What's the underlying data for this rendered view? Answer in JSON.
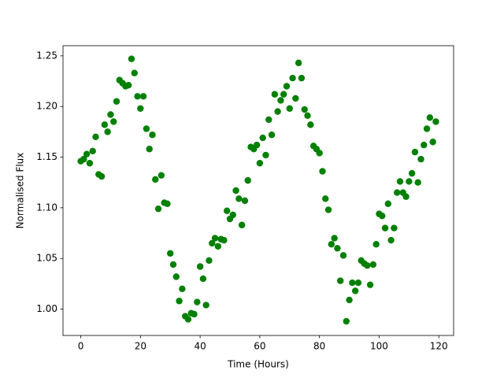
{
  "chart_data": {
    "type": "scatter",
    "xlabel": "Time (Hours)",
    "ylabel": "Normalised Flux",
    "color": "#008000",
    "x": [
      0,
      1,
      2,
      3,
      4,
      5,
      6,
      7,
      8,
      9,
      10,
      11,
      12,
      13,
      14,
      15,
      16,
      17,
      18,
      19,
      20,
      21,
      22,
      23,
      24,
      25,
      26,
      27,
      28,
      29,
      30,
      31,
      32,
      33,
      34,
      35,
      36,
      37,
      38,
      39,
      40,
      41,
      42,
      43,
      44,
      45,
      46,
      47,
      48,
      49,
      50,
      51,
      52,
      53,
      54,
      55,
      56,
      57,
      58,
      59,
      60,
      61,
      62,
      63,
      64,
      65,
      66,
      67,
      68,
      69,
      70,
      71,
      72,
      73,
      74,
      75,
      76,
      77,
      78,
      79,
      80,
      81,
      82,
      83,
      84,
      85,
      86,
      87,
      88,
      89,
      90,
      91,
      92,
      93,
      94,
      95,
      96,
      97,
      98,
      99,
      100,
      101,
      102,
      103,
      104,
      105,
      106,
      107,
      108,
      109,
      110,
      111,
      112,
      113,
      114,
      115,
      116,
      117,
      118,
      119
    ],
    "y": [
      1.146,
      1.148,
      1.153,
      1.144,
      1.156,
      1.17,
      1.133,
      1.131,
      1.182,
      1.175,
      1.192,
      1.185,
      1.205,
      1.226,
      1.223,
      1.22,
      1.221,
      1.247,
      1.233,
      1.21,
      1.198,
      1.21,
      1.178,
      1.158,
      1.172,
      1.128,
      1.099,
      1.132,
      1.105,
      1.104,
      1.055,
      1.044,
      1.032,
      1.008,
      1.02,
      0.993,
      0.99,
      0.996,
      0.995,
      1.007,
      1.042,
      1.03,
      1.004,
      1.048,
      1.065,
      1.07,
      1.062,
      1.069,
      1.068,
      1.097,
      1.089,
      1.093,
      1.117,
      1.109,
      1.083,
      1.107,
      1.127,
      1.16,
      1.158,
      1.162,
      1.144,
      1.169,
      1.152,
      1.187,
      1.172,
      1.212,
      1.195,
      1.206,
      1.212,
      1.22,
      1.198,
      1.228,
      1.208,
      1.243,
      1.228,
      1.197,
      1.191,
      1.182,
      1.161,
      1.158,
      1.154,
      1.136,
      1.109,
      1.098,
      1.064,
      1.07,
      1.06,
      1.028,
      1.053,
      0.988,
      1.009,
      1.026,
      1.018,
      1.026,
      1.048,
      1.045,
      1.043,
      1.024,
      1.044,
      1.064,
      1.094,
      1.092,
      1.08,
      1.104,
      1.068,
      1.08,
      1.115,
      1.126,
      1.115,
      1.111,
      1.126,
      1.134,
      1.155,
      1.125,
      1.148,
      1.162,
      1.178,
      1.189,
      1.165,
      1.185
    ],
    "xlim": [
      -5.95,
      124.95
    ],
    "ylim": [
      0.974,
      1.26
    ],
    "xticks": [
      0,
      20,
      40,
      60,
      80,
      100,
      120
    ],
    "yticks": [
      {
        "value": 1.0,
        "label": "1.00"
      },
      1.05,
      {
        "value": 1.1,
        "label": "1.10"
      },
      1.15,
      {
        "value": 1.2,
        "label": "1.20"
      },
      1.25
    ]
  }
}
